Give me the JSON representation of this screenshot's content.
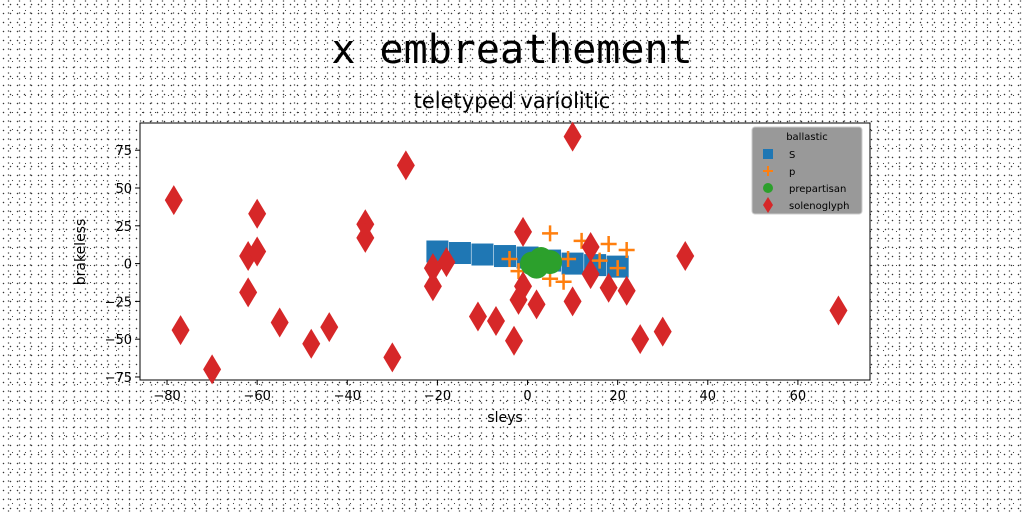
{
  "chart_data": {
    "type": "scatter",
    "title": "x embreathement",
    "subtitle": "teletyped variolitic",
    "xlabel": "sleys",
    "ylabel": "brakeless",
    "xlim": [
      -86,
      76
    ],
    "ylim": [
      -77,
      93
    ],
    "xticks": [
      -80,
      -60,
      -40,
      -20,
      0,
      20,
      40,
      60
    ],
    "yticks": [
      -75,
      -50,
      -25,
      0,
      25,
      50,
      75
    ],
    "legend_title": "ballastic",
    "legend_position": "upper right",
    "series": [
      {
        "name": "S",
        "marker": "square",
        "color": "#1f77b4",
        "points": [
          [
            -20,
            8
          ],
          [
            -15,
            7
          ],
          [
            -10,
            6
          ],
          [
            -5,
            5
          ],
          [
            0,
            4
          ],
          [
            5,
            2
          ],
          [
            10,
            0
          ],
          [
            15,
            -1
          ],
          [
            20,
            -2
          ]
        ]
      },
      {
        "name": "p",
        "marker": "plus",
        "color": "#ff7f0e",
        "points": [
          [
            5,
            20
          ],
          [
            12,
            15
          ],
          [
            18,
            13
          ],
          [
            22,
            9
          ],
          [
            -4,
            3
          ],
          [
            9,
            3
          ],
          [
            16,
            2
          ],
          [
            20,
            -3
          ],
          [
            -2,
            -5
          ],
          [
            5,
            -10
          ],
          [
            8,
            -12
          ]
        ]
      },
      {
        "name": "prepartisan",
        "marker": "circle",
        "color": "#2ca02c",
        "points": [
          [
            3,
            3
          ],
          [
            1,
            0
          ],
          [
            5,
            1
          ],
          [
            2,
            -2
          ]
        ]
      },
      {
        "name": "solenoglyph",
        "marker": "diamond",
        "color": "#d62728",
        "points": [
          [
            -78.5,
            42
          ],
          [
            -77,
            -44
          ],
          [
            -70,
            -70
          ],
          [
            -62,
            5
          ],
          [
            -62,
            -19
          ],
          [
            -60,
            33
          ],
          [
            -60,
            8
          ],
          [
            -55,
            -39
          ],
          [
            -48,
            -53
          ],
          [
            -44,
            -42
          ],
          [
            -36,
            26
          ],
          [
            -36,
            17
          ],
          [
            -30,
            -62
          ],
          [
            -27,
            65
          ],
          [
            -21,
            -3
          ],
          [
            -21,
            -15
          ],
          [
            -18,
            1
          ],
          [
            -11,
            -35
          ],
          [
            -7,
            -38
          ],
          [
            -3,
            -51
          ],
          [
            -1,
            21
          ],
          [
            -1,
            -15
          ],
          [
            -2,
            -24
          ],
          [
            2,
            -27
          ],
          [
            10,
            84
          ],
          [
            10,
            -25
          ],
          [
            14,
            11
          ],
          [
            14,
            -7
          ],
          [
            18,
            -16
          ],
          [
            22,
            -18
          ],
          [
            25,
            -50
          ],
          [
            30,
            -45
          ],
          [
            35,
            5
          ],
          [
            69,
            -31
          ]
        ]
      }
    ]
  }
}
